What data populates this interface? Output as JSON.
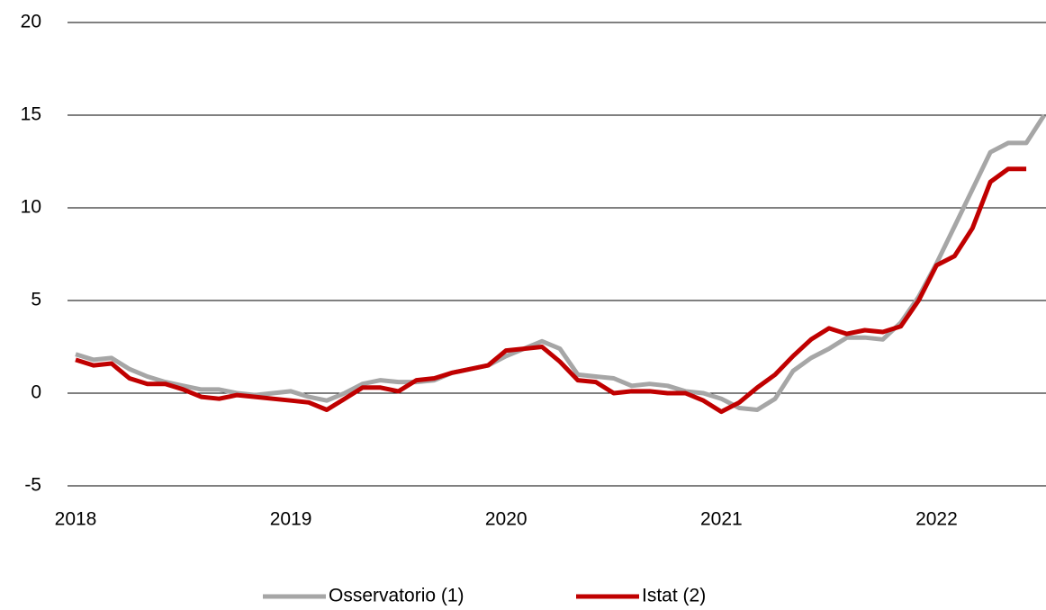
{
  "chart_data": {
    "type": "line",
    "categories": [
      "2018",
      null,
      null,
      null,
      null,
      null,
      null,
      null,
      null,
      null,
      null,
      null,
      "2019",
      null,
      null,
      null,
      null,
      null,
      null,
      null,
      null,
      null,
      null,
      null,
      "2020",
      null,
      null,
      null,
      null,
      null,
      null,
      null,
      null,
      null,
      null,
      null,
      "2021",
      null,
      null,
      null,
      null,
      null,
      null,
      null,
      null,
      null,
      null,
      null,
      "2022",
      null,
      null,
      null,
      null,
      null,
      null
    ],
    "series": [
      {
        "name": "Osservatorio (1)",
        "color": "#a6a6a6",
        "values": [
          2.1,
          1.8,
          1.9,
          1.3,
          0.9,
          0.6,
          0.4,
          0.2,
          0.2,
          0.0,
          -0.1,
          0.0,
          0.1,
          -0.2,
          -0.4,
          0.0,
          0.5,
          0.7,
          0.6,
          0.6,
          0.7,
          1.1,
          1.3,
          1.5,
          2.0,
          2.4,
          2.8,
          2.4,
          1.0,
          0.9,
          0.8,
          0.4,
          0.5,
          0.4,
          0.1,
          0.0,
          -0.3,
          -0.8,
          -0.9,
          -0.3,
          1.2,
          1.9,
          2.4,
          3.0,
          3.0,
          2.9,
          3.8,
          5.2,
          7.0,
          9.0,
          11.0,
          13.0,
          13.5,
          13.5,
          15.0
        ]
      },
      {
        "name": "Istat (2)",
        "color": "#c00000",
        "values": [
          1.8,
          1.5,
          1.6,
          0.8,
          0.5,
          0.5,
          0.2,
          -0.2,
          -0.3,
          -0.1,
          -0.2,
          -0.3,
          -0.4,
          -0.5,
          -0.9,
          -0.3,
          0.3,
          0.3,
          0.1,
          0.7,
          0.8,
          1.1,
          1.3,
          1.5,
          2.3,
          2.4,
          2.5,
          1.7,
          0.7,
          0.6,
          0.0,
          0.1,
          0.1,
          0.0,
          0.0,
          -0.4,
          -1.0,
          -0.5,
          0.3,
          1.0,
          2.0,
          2.9,
          3.5,
          3.2,
          3.4,
          3.3,
          3.6,
          5.0,
          6.9,
          7.4,
          8.9,
          11.4,
          12.1,
          12.1,
          null
        ]
      }
    ],
    "ylim": [
      -5,
      20
    ],
    "yticks": [
      -5,
      0,
      5,
      10,
      15,
      20
    ],
    "grid": true,
    "legend": "bottom"
  }
}
